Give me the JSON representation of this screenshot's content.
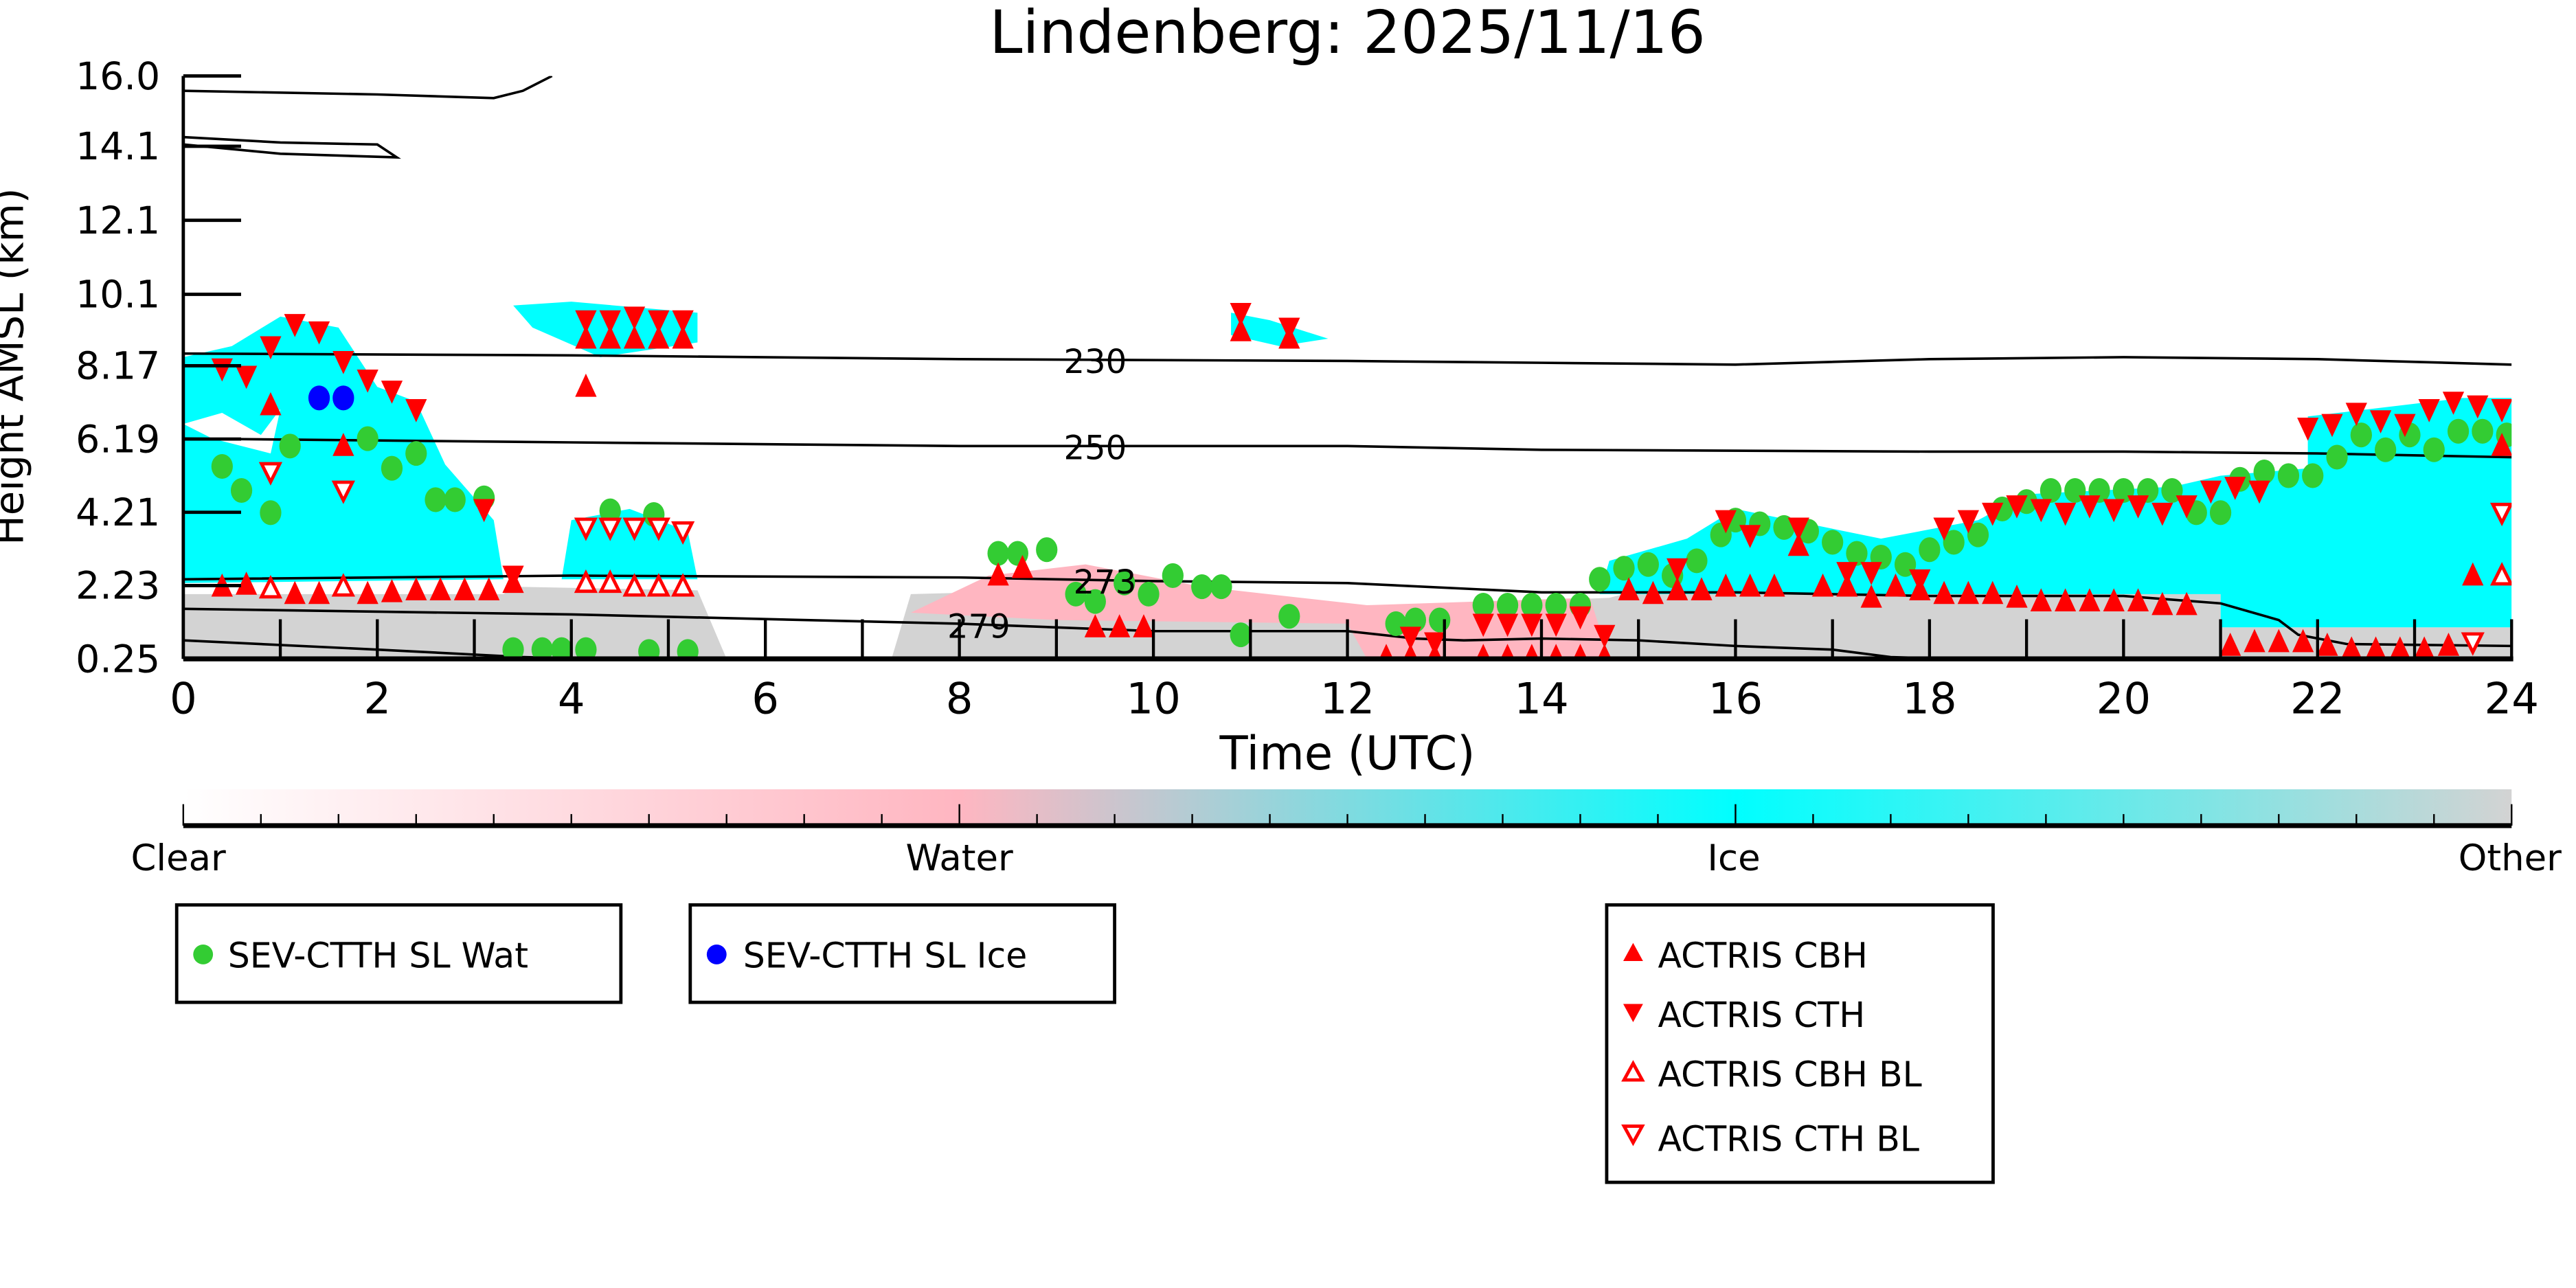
{
  "chart_data": {
    "type": "scatter",
    "title": "Lindenberg: 2025/11/16",
    "xlabel": "Time (UTC)",
    "ylabel": "Height AMSL (km)",
    "xlim": [
      0,
      24
    ],
    "ylim": [
      0.25,
      16.0
    ],
    "x_ticks": [
      "0",
      "2",
      "4",
      "6",
      "8",
      "10",
      "12",
      "14",
      "16",
      "18",
      "20",
      "22",
      "24"
    ],
    "y_ticks": [
      "0.25",
      "2.23",
      "4.21",
      "6.19",
      "8.17",
      "10.1",
      "12.1",
      "14.1",
      "16.0"
    ],
    "y_tick_values": [
      0.25,
      2.23,
      4.21,
      6.19,
      8.17,
      10.1,
      12.1,
      14.1,
      16.0
    ],
    "colorbar": {
      "labels": [
        "Clear",
        "Water",
        "Ice",
        "Other"
      ],
      "colors": [
        "#ffffff",
        "#ffb6c1",
        "#00ffff",
        "#d3d3d3"
      ]
    },
    "contours": [
      {
        "label": "230",
        "label_at": 9.4,
        "points": [
          [
            0,
            8.5
          ],
          [
            4,
            8.45
          ],
          [
            8,
            8.35
          ],
          [
            12,
            8.3
          ],
          [
            14,
            8.25
          ],
          [
            16,
            8.2
          ],
          [
            18,
            8.35
          ],
          [
            20,
            8.4
          ],
          [
            22,
            8.35
          ],
          [
            24,
            8.2
          ]
        ]
      },
      {
        "label": "250",
        "label_at": 9.4,
        "points": [
          [
            0,
            6.2
          ],
          [
            4,
            6.1
          ],
          [
            8,
            6.0
          ],
          [
            12,
            6.0
          ],
          [
            14,
            5.9
          ],
          [
            18,
            5.85
          ],
          [
            20,
            5.85
          ],
          [
            22,
            5.8
          ],
          [
            24,
            5.7
          ]
        ]
      },
      {
        "label": "273",
        "label_at": 9.5,
        "points": [
          [
            0,
            2.4
          ],
          [
            4,
            2.5
          ],
          [
            8,
            2.45
          ],
          [
            10,
            2.35
          ],
          [
            12,
            2.3
          ],
          [
            14,
            2.05
          ],
          [
            16,
            2.05
          ],
          [
            18,
            1.95
          ],
          [
            20,
            1.95
          ],
          [
            21,
            1.75
          ],
          [
            21.6,
            1.3
          ],
          [
            21.8,
            0.9
          ],
          [
            22.3,
            0.65
          ],
          [
            24,
            0.6
          ]
        ]
      },
      {
        "label": "279",
        "label_at": 8.2,
        "points": [
          [
            0,
            1.6
          ],
          [
            4,
            1.45
          ],
          [
            8,
            1.2
          ],
          [
            10,
            1.0
          ],
          [
            12,
            1.0
          ],
          [
            12.7,
            0.8
          ],
          [
            13.2,
            0.75
          ],
          [
            14,
            0.8
          ],
          [
            15,
            0.75
          ],
          [
            16,
            0.6
          ],
          [
            17,
            0.5
          ],
          [
            17.6,
            0.3
          ],
          [
            18.2,
            0.25
          ]
        ]
      },
      {
        "label": "",
        "label_at": null,
        "points": [
          [
            0,
            0.75
          ],
          [
            2,
            0.5
          ],
          [
            3.5,
            0.3
          ],
          [
            4.2,
            0.25
          ]
        ]
      },
      {
        "label": "",
        "label_at": null,
        "points": [
          [
            0,
            15.6
          ],
          [
            2,
            15.5
          ],
          [
            3.2,
            15.4
          ],
          [
            3.5,
            15.6
          ],
          [
            3.8,
            16.0
          ]
        ]
      },
      {
        "label": "",
        "label_at": null,
        "points": [
          [
            0,
            14.35
          ],
          [
            1,
            14.2
          ],
          [
            2,
            14.15
          ],
          [
            2.2,
            13.8
          ],
          [
            1,
            13.9
          ],
          [
            0,
            14.15
          ]
        ]
      }
    ],
    "series": [
      {
        "name": "SEV-CTTH SL Wat",
        "marker": "circle",
        "color": "#33cc33",
        "points": [
          [
            0.4,
            5.45
          ],
          [
            0.6,
            4.8
          ],
          [
            0.9,
            4.2
          ],
          [
            1.1,
            6.0
          ],
          [
            1.9,
            6.2
          ],
          [
            2.15,
            5.4
          ],
          [
            2.4,
            5.8
          ],
          [
            2.6,
            4.55
          ],
          [
            2.8,
            4.55
          ],
          [
            3.1,
            4.6
          ],
          [
            3.4,
            0.5
          ],
          [
            3.7,
            0.5
          ],
          [
            3.9,
            0.5
          ],
          [
            4.15,
            0.5
          ],
          [
            4.8,
            0.45
          ],
          [
            5.2,
            0.45
          ],
          [
            4.4,
            4.25
          ],
          [
            4.85,
            4.15
          ],
          [
            8.4,
            3.1
          ],
          [
            8.6,
            3.1
          ],
          [
            8.9,
            3.2
          ],
          [
            9.2,
            2.0
          ],
          [
            9.4,
            1.8
          ],
          [
            9.7,
            2.3
          ],
          [
            9.95,
            2.0
          ],
          [
            10.2,
            2.5
          ],
          [
            10.5,
            2.2
          ],
          [
            10.7,
            2.2
          ],
          [
            10.9,
            0.9
          ],
          [
            11.4,
            1.4
          ],
          [
            12.5,
            1.2
          ],
          [
            12.7,
            1.3
          ],
          [
            12.95,
            1.3
          ],
          [
            13.4,
            1.7
          ],
          [
            13.65,
            1.7
          ],
          [
            13.9,
            1.7
          ],
          [
            14.15,
            1.7
          ],
          [
            14.4,
            1.7
          ],
          [
            14.6,
            2.4
          ],
          [
            14.85,
            2.7
          ],
          [
            15.1,
            2.8
          ],
          [
            15.35,
            2.5
          ],
          [
            15.6,
            2.9
          ],
          [
            15.85,
            3.6
          ],
          [
            16.0,
            4.0
          ],
          [
            16.25,
            3.9
          ],
          [
            16.5,
            3.8
          ],
          [
            16.75,
            3.7
          ],
          [
            17.0,
            3.4
          ],
          [
            17.25,
            3.1
          ],
          [
            17.5,
            3.0
          ],
          [
            17.75,
            2.8
          ],
          [
            18.0,
            3.2
          ],
          [
            18.25,
            3.4
          ],
          [
            18.5,
            3.6
          ],
          [
            18.75,
            4.3
          ],
          [
            19.0,
            4.5
          ],
          [
            19.25,
            4.8
          ],
          [
            19.5,
            4.8
          ],
          [
            19.75,
            4.8
          ],
          [
            20.0,
            4.8
          ],
          [
            20.25,
            4.8
          ],
          [
            20.5,
            4.8
          ],
          [
            20.75,
            4.2
          ],
          [
            21.0,
            4.2
          ],
          [
            21.2,
            5.1
          ],
          [
            21.45,
            5.3
          ],
          [
            21.7,
            5.2
          ],
          [
            21.95,
            5.2
          ],
          [
            22.2,
            5.7
          ],
          [
            22.45,
            6.3
          ],
          [
            22.7,
            5.9
          ],
          [
            22.95,
            6.3
          ],
          [
            23.2,
            5.9
          ],
          [
            23.45,
            6.4
          ],
          [
            23.7,
            6.4
          ],
          [
            23.95,
            6.3
          ]
        ]
      },
      {
        "name": "SEV-CTTH SL Ice",
        "marker": "circle",
        "color": "#0000ff",
        "points": [
          [
            1.4,
            7.3
          ],
          [
            1.65,
            7.3
          ]
        ]
      },
      {
        "name": "ACTRIS CBH",
        "marker": "triangle-up",
        "color": "#ff0000",
        "points": [
          [
            0.4,
            2.2
          ],
          [
            0.65,
            2.25
          ],
          [
            0.9,
            7.1
          ],
          [
            1.15,
            2.0
          ],
          [
            1.4,
            2.0
          ],
          [
            1.65,
            6.0
          ],
          [
            1.9,
            2.0
          ],
          [
            2.15,
            2.05
          ],
          [
            2.4,
            2.1
          ],
          [
            2.65,
            2.1
          ],
          [
            2.9,
            2.1
          ],
          [
            3.15,
            2.1
          ],
          [
            3.4,
            2.3
          ],
          [
            4.15,
            7.6
          ],
          [
            4.15,
            8.9
          ],
          [
            4.4,
            8.9
          ],
          [
            4.65,
            8.9
          ],
          [
            4.9,
            8.9
          ],
          [
            5.15,
            8.9
          ],
          [
            8.4,
            2.5
          ],
          [
            8.65,
            2.7
          ],
          [
            9.4,
            1.1
          ],
          [
            9.65,
            1.1
          ],
          [
            9.9,
            1.1
          ],
          [
            10.9,
            9.1
          ],
          [
            11.4,
            8.9
          ],
          [
            12.4,
            0.3
          ],
          [
            12.65,
            0.3
          ],
          [
            12.9,
            0.3
          ],
          [
            13.4,
            0.3
          ],
          [
            13.65,
            0.3
          ],
          [
            13.9,
            0.3
          ],
          [
            14.15,
            0.3
          ],
          [
            14.4,
            0.3
          ],
          [
            14.65,
            0.3
          ],
          [
            14.9,
            2.1
          ],
          [
            15.15,
            2.0
          ],
          [
            15.4,
            2.1
          ],
          [
            15.65,
            2.1
          ],
          [
            15.9,
            2.2
          ],
          [
            16.15,
            2.2
          ],
          [
            16.4,
            2.2
          ],
          [
            16.65,
            3.3
          ],
          [
            16.9,
            2.2
          ],
          [
            17.15,
            2.2
          ],
          [
            17.4,
            1.9
          ],
          [
            17.65,
            2.2
          ],
          [
            17.9,
            2.1
          ],
          [
            18.15,
            2.0
          ],
          [
            18.4,
            2.0
          ],
          [
            18.65,
            2.0
          ],
          [
            18.9,
            1.9
          ],
          [
            19.15,
            1.8
          ],
          [
            19.4,
            1.8
          ],
          [
            19.65,
            1.8
          ],
          [
            19.9,
            1.8
          ],
          [
            20.15,
            1.8
          ],
          [
            20.4,
            1.7
          ],
          [
            20.65,
            1.7
          ],
          [
            21.1,
            0.6
          ],
          [
            21.35,
            0.7
          ],
          [
            21.6,
            0.7
          ],
          [
            21.85,
            0.7
          ],
          [
            22.1,
            0.6
          ],
          [
            22.35,
            0.5
          ],
          [
            22.6,
            0.5
          ],
          [
            22.85,
            0.5
          ],
          [
            23.1,
            0.5
          ],
          [
            23.35,
            0.6
          ],
          [
            23.6,
            2.5
          ],
          [
            23.9,
            6.0
          ]
        ]
      },
      {
        "name": "ACTRIS CTH",
        "marker": "triangle-down",
        "color": "#ff0000",
        "points": [
          [
            0.4,
            8.1
          ],
          [
            0.65,
            7.9
          ],
          [
            0.9,
            8.7
          ],
          [
            1.15,
            9.3
          ],
          [
            1.4,
            9.1
          ],
          [
            1.65,
            8.3
          ],
          [
            1.9,
            7.8
          ],
          [
            2.15,
            7.5
          ],
          [
            2.4,
            7.0
          ],
          [
            3.1,
            4.3
          ],
          [
            3.4,
            2.5
          ],
          [
            4.15,
            9.4
          ],
          [
            4.4,
            9.4
          ],
          [
            4.65,
            9.5
          ],
          [
            4.9,
            9.4
          ],
          [
            5.15,
            9.4
          ],
          [
            10.9,
            9.6
          ],
          [
            11.4,
            9.2
          ],
          [
            12.65,
            0.85
          ],
          [
            12.9,
            0.7
          ],
          [
            13.4,
            1.2
          ],
          [
            13.65,
            1.2
          ],
          [
            13.9,
            1.2
          ],
          [
            14.15,
            1.2
          ],
          [
            14.4,
            1.4
          ],
          [
            14.65,
            0.9
          ],
          [
            15.4,
            2.7
          ],
          [
            15.9,
            4.0
          ],
          [
            16.15,
            3.6
          ],
          [
            16.65,
            3.8
          ],
          [
            17.15,
            2.6
          ],
          [
            17.4,
            2.6
          ],
          [
            17.9,
            2.4
          ],
          [
            18.15,
            3.8
          ],
          [
            18.4,
            4.0
          ],
          [
            18.65,
            4.2
          ],
          [
            18.9,
            4.4
          ],
          [
            19.15,
            4.3
          ],
          [
            19.4,
            4.2
          ],
          [
            19.65,
            4.4
          ],
          [
            19.9,
            4.3
          ],
          [
            20.15,
            4.4
          ],
          [
            20.4,
            4.2
          ],
          [
            20.65,
            4.4
          ],
          [
            20.9,
            4.8
          ],
          [
            21.15,
            4.9
          ],
          [
            21.4,
            4.8
          ],
          [
            21.9,
            6.5
          ],
          [
            22.15,
            6.6
          ],
          [
            22.4,
            6.9
          ],
          [
            22.65,
            6.7
          ],
          [
            22.9,
            6.6
          ],
          [
            23.15,
            7.0
          ],
          [
            23.4,
            7.2
          ],
          [
            23.65,
            7.1
          ],
          [
            23.9,
            7.0
          ]
        ]
      },
      {
        "name": "ACTRIS CBH BL",
        "marker": "triangle-up-open",
        "color": "#ff0000",
        "points": [
          [
            0.9,
            2.15
          ],
          [
            1.65,
            2.2
          ],
          [
            4.15,
            2.3
          ],
          [
            4.4,
            2.3
          ],
          [
            4.65,
            2.2
          ],
          [
            4.9,
            2.2
          ],
          [
            5.15,
            2.2
          ],
          [
            23.9,
            2.5
          ]
        ]
      },
      {
        "name": "ACTRIS CTH BL",
        "marker": "triangle-down-open",
        "color": "#ff0000",
        "points": [
          [
            0.9,
            5.3
          ],
          [
            1.65,
            4.8
          ],
          [
            4.15,
            3.8
          ],
          [
            4.4,
            3.8
          ],
          [
            4.65,
            3.8
          ],
          [
            4.9,
            3.8
          ],
          [
            5.15,
            3.7
          ],
          [
            23.6,
            0.7
          ],
          [
            23.9,
            4.2
          ]
        ]
      }
    ]
  }
}
